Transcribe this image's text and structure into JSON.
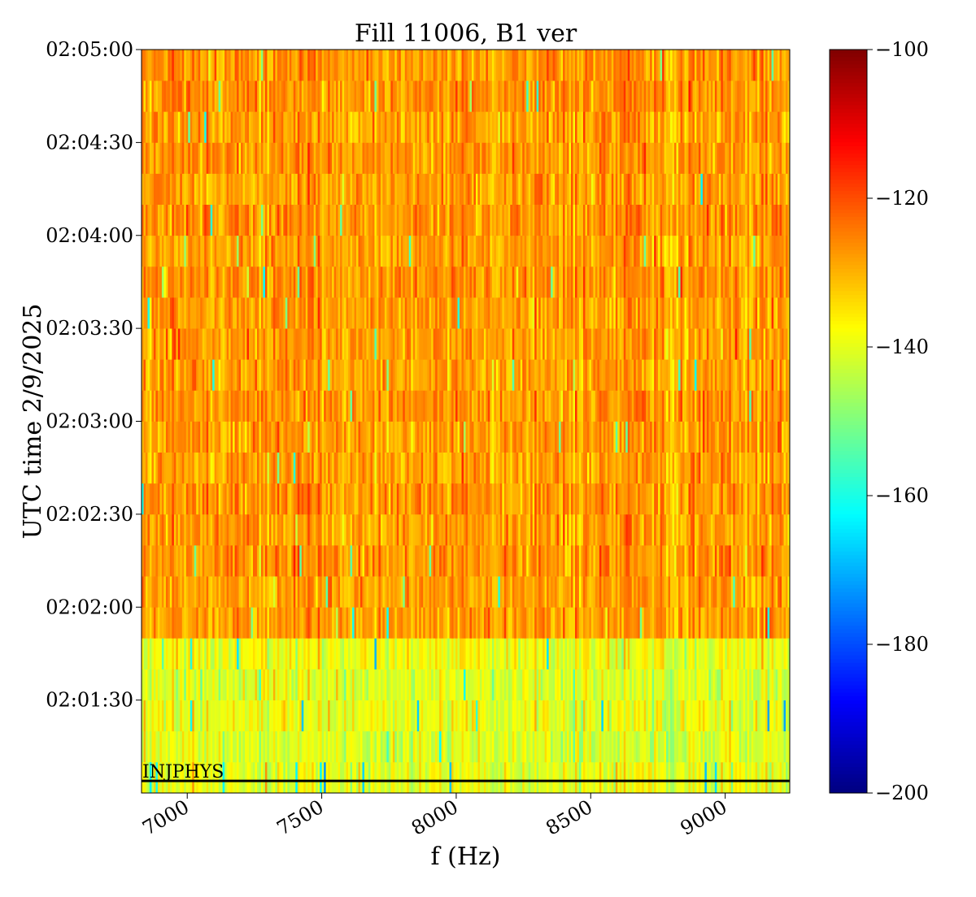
{
  "chart_data": {
    "type": "heatmap",
    "title": "Fill 11006, B1 ver",
    "xlabel": "f (Hz)",
    "ylabel": "UTC time 2/9/2025",
    "xlim": [
      6830,
      9240
    ],
    "x_ticks": [
      7000,
      7500,
      8000,
      8500,
      9000
    ],
    "x_tick_labels": [
      "7000",
      "7500",
      "8000",
      "8500",
      "9000"
    ],
    "y_tick_labels": [
      "02:01:30",
      "02:02:00",
      "02:02:30",
      "02:03:00",
      "02:03:30",
      "02:04:00",
      "02:04:30",
      "02:05:00"
    ],
    "y_ticks_seconds": [
      90,
      120,
      150,
      180,
      210,
      240,
      270,
      300
    ],
    "ylim_seconds": [
      60,
      300
    ],
    "row_duration_seconds": 10,
    "row_mean_dB": [
      -140,
      -141,
      -139,
      -141,
      -139,
      -128,
      -128,
      -127,
      -128,
      -127,
      -128,
      -128,
      -127,
      -128,
      -128,
      -128,
      -127,
      -128,
      -127,
      -128,
      -127,
      -128,
      -127,
      -127
    ],
    "colorbar": {
      "colormap": "jet",
      "range": [
        -200,
        -100
      ],
      "ticks": [
        -100,
        -120,
        -140,
        -160,
        -180,
        -200
      ],
      "tick_labels": [
        "−100",
        "−120",
        "−140",
        "−160",
        "−180",
        "−200"
      ]
    },
    "annotation": {
      "text": "INJPHYS"
    },
    "grid": false,
    "legend": "none"
  }
}
